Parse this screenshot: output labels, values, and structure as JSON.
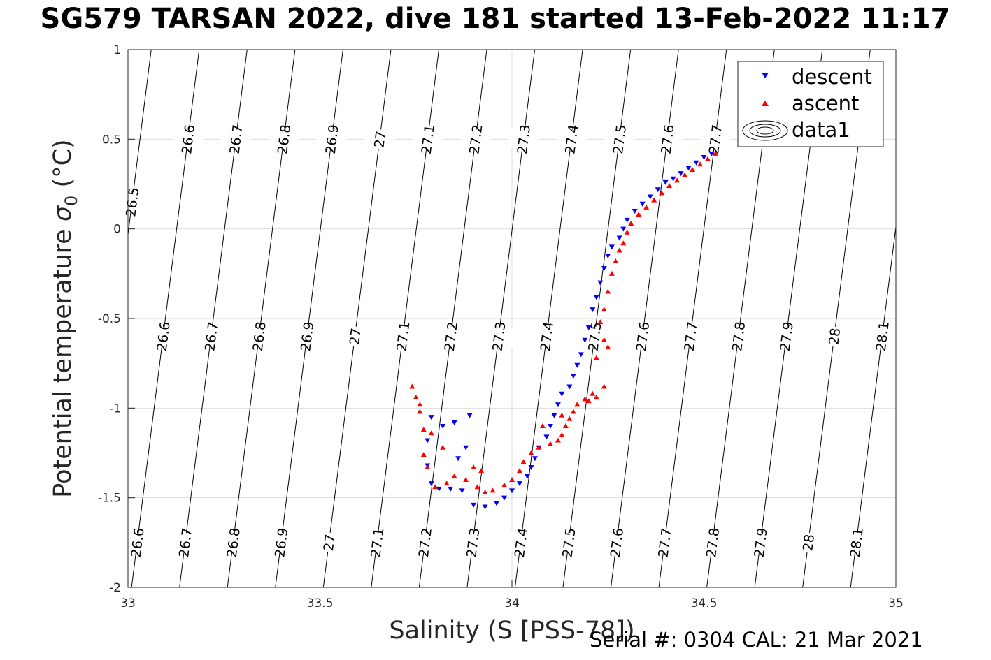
{
  "title": "SG579 TARSAN 2022, dive 181 started 13-Feb-2022 11:17",
  "footer": "Serial #: 0304  CAL: 21 Mar 2021",
  "chart_data": {
    "type": "scatter",
    "xlabel": "Salinity (S [PSS-78])",
    "ylabel": "Potential temperature",
    "ylabel_symbol": "σ",
    "ylabel_subscript": "0",
    "ylabel_unit": "(°C)",
    "xlim": [
      33,
      35
    ],
    "ylim": [
      -2,
      1
    ],
    "xticks": [
      33,
      33.5,
      34,
      34.5,
      35
    ],
    "xtick_labels": [
      "33",
      "33.5",
      "34",
      "34.5",
      "35"
    ],
    "yticks": [
      -2,
      -1.5,
      -1,
      -0.5,
      0,
      0.5,
      1
    ],
    "ytick_labels": [
      "-2",
      "-1.5",
      "-1",
      "-0.5",
      "0",
      "0.5",
      "1"
    ],
    "grid": true,
    "legend_position": "top-right",
    "legend": [
      "descent",
      "ascent",
      "data1"
    ],
    "colors": {
      "descent": "#0000ff",
      "ascent": "#ff0000",
      "contour": "#000000",
      "grid": "#dddddd"
    },
    "contours": {
      "name": "data1",
      "levels": [
        26.5,
        26.6,
        26.7,
        26.8,
        26.9,
        27,
        27.1,
        27.2,
        27.3,
        27.4,
        27.5,
        27.6,
        27.7,
        27.8,
        27.9,
        28,
        28.1
      ],
      "level_labels": [
        "26.5",
        "26.6",
        "26.7",
        "26.8",
        "26.9",
        "27",
        "27.1",
        "27.2",
        "27.3",
        "27.4",
        "27.5",
        "27.6",
        "27.7",
        "27.8",
        "27.9",
        "28",
        "28.1"
      ],
      "label_rows": [
        {
          "temperature": 0.5,
          "levels": [
            "26.6",
            "26.7",
            "26.8",
            "26.9",
            "27",
            "27.1",
            "27.2",
            "27.3",
            "27.4",
            "27.5",
            "27.6",
            "27.7"
          ]
        },
        {
          "temperature": 0.15,
          "levels": [
            "26.5"
          ]
        },
        {
          "temperature": -0.6,
          "levels": [
            "26.6",
            "26.7",
            "26.8",
            "26.9",
            "27",
            "27.1",
            "27.2",
            "27.3",
            "27.4",
            "27.5",
            "27.6",
            "27.7",
            "27.8",
            "27.9",
            "28",
            "28.1"
          ]
        },
        {
          "temperature": -1.75,
          "levels": [
            "26.6",
            "26.7",
            "26.8",
            "26.9",
            "27",
            "27.1",
            "27.2",
            "27.3",
            "27.4",
            "27.5",
            "27.6",
            "27.7",
            "27.8",
            "27.9",
            "28",
            "28.1"
          ]
        }
      ]
    },
    "series": [
      {
        "name": "descent",
        "marker": "triangle-down",
        "points": [
          [
            34.52,
            0.42
          ],
          [
            34.5,
            0.4
          ],
          [
            34.48,
            0.37
          ],
          [
            34.46,
            0.34
          ],
          [
            34.44,
            0.31
          ],
          [
            34.42,
            0.28
          ],
          [
            34.4,
            0.26
          ],
          [
            34.38,
            0.22
          ],
          [
            34.36,
            0.18
          ],
          [
            34.34,
            0.14
          ],
          [
            34.32,
            0.1
          ],
          [
            34.3,
            0.05
          ],
          [
            34.29,
            0.0
          ],
          [
            34.28,
            -0.05
          ],
          [
            34.26,
            -0.1
          ],
          [
            34.25,
            -0.15
          ],
          [
            34.24,
            -0.22
          ],
          [
            34.23,
            -0.3
          ],
          [
            34.22,
            -0.38
          ],
          [
            34.21,
            -0.45
          ],
          [
            34.2,
            -0.55
          ],
          [
            34.19,
            -0.62
          ],
          [
            34.18,
            -0.7
          ],
          [
            34.17,
            -0.76
          ],
          [
            34.16,
            -0.82
          ],
          [
            34.15,
            -0.88
          ],
          [
            34.13,
            -0.92
          ],
          [
            34.12,
            -0.98
          ],
          [
            34.11,
            -1.04
          ],
          [
            34.1,
            -1.1
          ],
          [
            34.09,
            -1.16
          ],
          [
            34.07,
            -1.22
          ],
          [
            34.06,
            -1.28
          ],
          [
            34.05,
            -1.33
          ],
          [
            34.04,
            -1.38
          ],
          [
            34.02,
            -1.42
          ],
          [
            34.0,
            -1.46
          ],
          [
            33.98,
            -1.5
          ],
          [
            33.96,
            -1.53
          ],
          [
            33.93,
            -1.55
          ],
          [
            33.9,
            -1.54
          ],
          [
            33.87,
            -1.46
          ],
          [
            33.84,
            -1.45
          ],
          [
            33.81,
            -1.45
          ],
          [
            33.79,
            -1.42
          ],
          [
            33.78,
            -1.32
          ],
          [
            33.78,
            -1.18
          ],
          [
            33.79,
            -1.05
          ],
          [
            33.82,
            -1.1
          ],
          [
            33.85,
            -1.08
          ],
          [
            33.88,
            -1.22
          ],
          [
            33.86,
            -1.28
          ],
          [
            33.89,
            -1.04
          ]
        ]
      },
      {
        "name": "ascent",
        "marker": "triangle-up",
        "points": [
          [
            34.53,
            0.42
          ],
          [
            34.51,
            0.39
          ],
          [
            34.49,
            0.36
          ],
          [
            34.47,
            0.33
          ],
          [
            34.45,
            0.3
          ],
          [
            34.43,
            0.27
          ],
          [
            34.41,
            0.24
          ],
          [
            34.39,
            0.2
          ],
          [
            34.37,
            0.16
          ],
          [
            34.35,
            0.12
          ],
          [
            34.33,
            0.08
          ],
          [
            34.31,
            0.03
          ],
          [
            34.3,
            -0.02
          ],
          [
            34.29,
            -0.08
          ],
          [
            34.28,
            -0.12
          ],
          [
            34.27,
            -0.18
          ],
          [
            34.26,
            -0.25
          ],
          [
            34.25,
            -0.35
          ],
          [
            34.24,
            -0.45
          ],
          [
            34.23,
            -0.52
          ],
          [
            34.24,
            -0.62
          ],
          [
            34.25,
            -0.66
          ],
          [
            34.22,
            -0.72
          ],
          [
            34.24,
            -0.88
          ],
          [
            34.21,
            -0.92
          ],
          [
            34.19,
            -0.95
          ],
          [
            34.17,
            -0.98
          ],
          [
            34.16,
            -1.02
          ],
          [
            34.15,
            -1.06
          ],
          [
            34.14,
            -1.1
          ],
          [
            34.13,
            -1.15
          ],
          [
            34.12,
            -1.18
          ],
          [
            34.1,
            -1.2
          ],
          [
            34.07,
            -1.22
          ],
          [
            34.05,
            -1.25
          ],
          [
            34.03,
            -1.3
          ],
          [
            34.02,
            -1.35
          ],
          [
            34.0,
            -1.4
          ],
          [
            33.98,
            -1.43
          ],
          [
            33.95,
            -1.46
          ],
          [
            33.93,
            -1.47
          ],
          [
            33.91,
            -1.44
          ],
          [
            33.88,
            -1.4
          ],
          [
            33.85,
            -1.38
          ],
          [
            33.83,
            -1.42
          ],
          [
            33.8,
            -1.44
          ],
          [
            33.78,
            -1.33
          ],
          [
            33.77,
            -1.26
          ],
          [
            33.77,
            -1.12
          ],
          [
            33.76,
            -1.02
          ],
          [
            33.75,
            -0.94
          ],
          [
            33.74,
            -0.88
          ],
          [
            33.76,
            -0.98
          ],
          [
            33.79,
            -1.14
          ],
          [
            33.82,
            -1.22
          ],
          [
            33.9,
            -1.33
          ],
          [
            33.92,
            -1.35
          ],
          [
            34.08,
            -1.1
          ],
          [
            34.13,
            -1.04
          ],
          [
            34.17,
            -0.98
          ],
          [
            34.2,
            -0.96
          ],
          [
            34.22,
            -0.94
          ]
        ]
      }
    ]
  }
}
